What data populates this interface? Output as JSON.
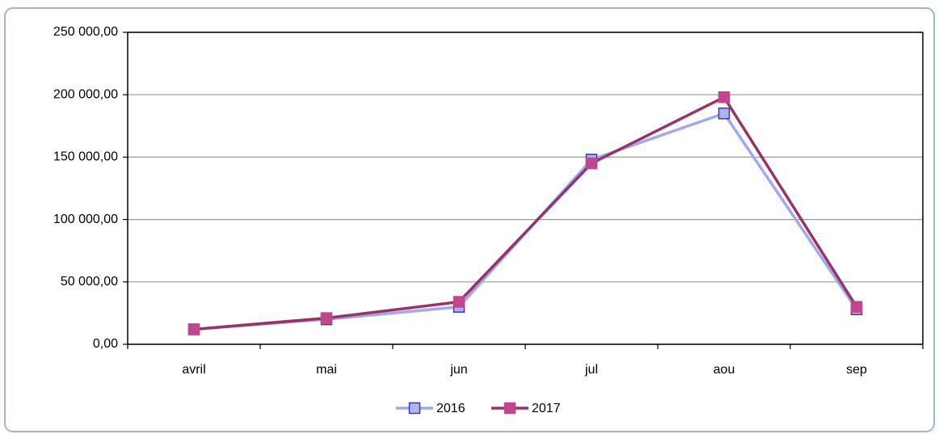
{
  "chart_data": {
    "type": "line",
    "categories": [
      "avril",
      "mai",
      "jun",
      "jul",
      "aou",
      "sep"
    ],
    "series": [
      {
        "name": "2016",
        "color": "#9fa8f0",
        "marker_color": "#aab4ee",
        "marker_edge": "#3a3aa8",
        "values": [
          12000,
          20000,
          30000,
          148000,
          185000,
          28000
        ]
      },
      {
        "name": "2017",
        "color": "#993366",
        "marker_color": "#c2468e",
        "marker_edge": "#c2468e",
        "values": [
          12000,
          21000,
          34000,
          145000,
          198000,
          30000
        ]
      }
    ],
    "ylim": [
      0,
      250000
    ],
    "yticks": [
      {
        "value": 0,
        "label": "0,00"
      },
      {
        "value": 50000,
        "label": "50 000,00"
      },
      {
        "value": 100000,
        "label": "100 000,00"
      },
      {
        "value": 150000,
        "label": "150 000,00"
      },
      {
        "value": 200000,
        "label": "200 000,00"
      },
      {
        "value": 250000,
        "label": "250 000,00"
      }
    ],
    "grid": true,
    "legend": "bottom"
  }
}
